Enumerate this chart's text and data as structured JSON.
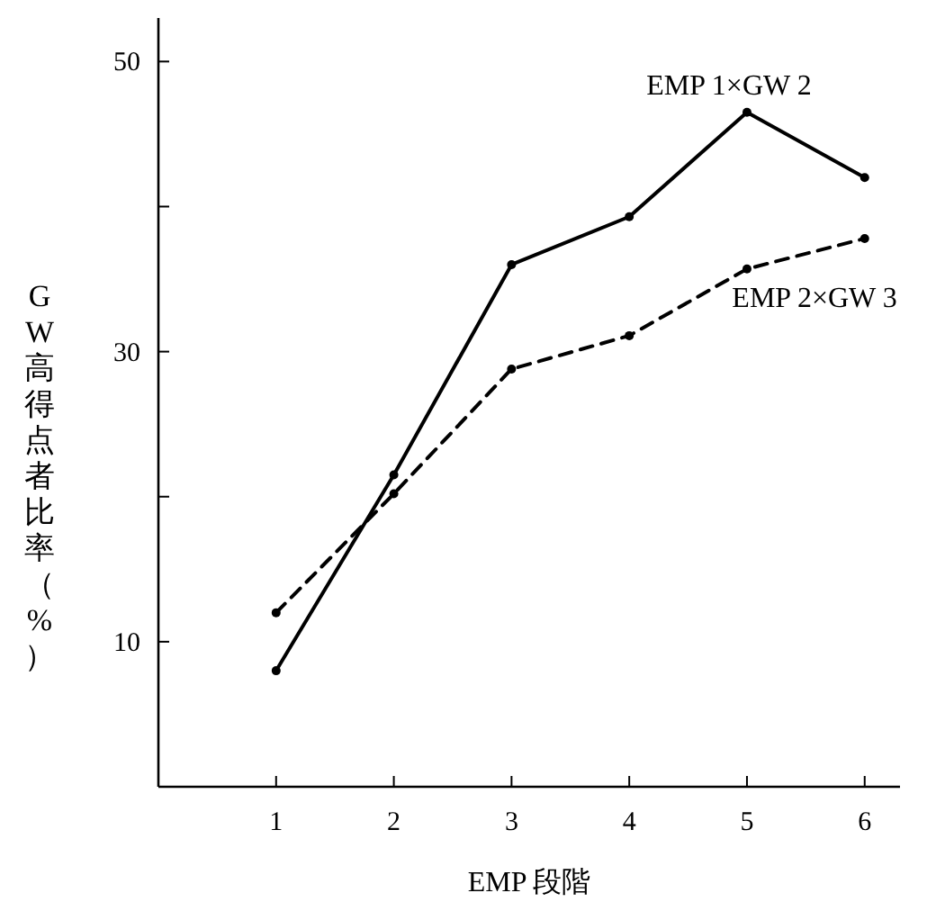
{
  "chart_data": {
    "type": "line",
    "xlabel": "EMP 段階",
    "ylabel": "GW高得点者比率（%）",
    "x": [
      1,
      2,
      3,
      4,
      5,
      6
    ],
    "series": [
      {
        "name": "EMP 1×GW 2",
        "color": "#000000",
        "line_style": "solid",
        "values": [
          8,
          21.5,
          36,
          39.3,
          46.5,
          42
        ]
      },
      {
        "name": "EMP 2×GW 3",
        "color": "#000000",
        "line_style": "dashed",
        "values": [
          12,
          20.2,
          28.8,
          31.1,
          35.7,
          37.8
        ]
      }
    ],
    "xlim": [
      0,
      6.3
    ],
    "ylim": [
      0,
      53
    ],
    "xticks": [
      1,
      2,
      3,
      4,
      5,
      6
    ],
    "yticks": [
      10,
      {
        "value": 20,
        "label": null
      },
      30,
      {
        "value": 40,
        "label": null
      },
      50
    ],
    "marker": "circle"
  }
}
